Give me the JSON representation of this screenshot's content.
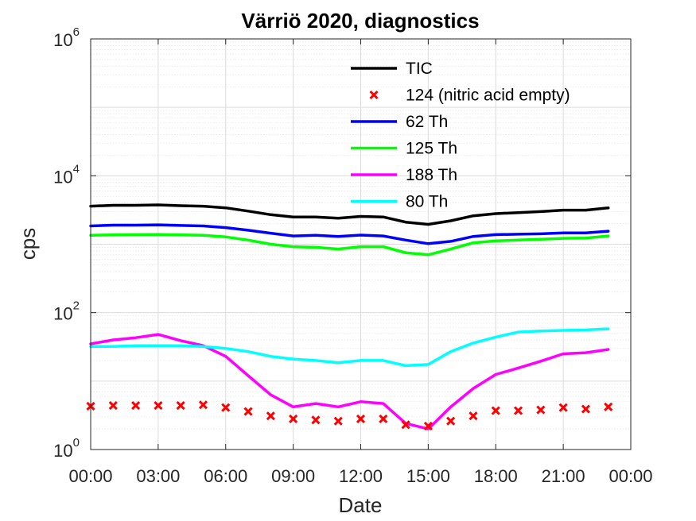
{
  "chart_data": {
    "type": "line",
    "title": "Värriö 2020, diagnostics",
    "xlabel": "Date",
    "ylabel": "cps",
    "yscale": "log",
    "ylim": [
      1,
      1000000
    ],
    "xlim": [
      "00:00",
      "24:00"
    ],
    "grid": true,
    "legend_position": "top-right",
    "x_tick_labels": [
      "00:00",
      "03:00",
      "06:00",
      "09:00",
      "12:00",
      "15:00",
      "18:00",
      "21:00",
      "00:00"
    ],
    "y_tick_labels": [
      {
        "base": "10",
        "exp": "0"
      },
      {
        "base": "10",
        "exp": "2"
      },
      {
        "base": "10",
        "exp": "4"
      },
      {
        "base": "10",
        "exp": "6"
      }
    ],
    "x": [
      "00:00",
      "01:00",
      "02:00",
      "03:00",
      "04:00",
      "05:00",
      "06:00",
      "07:00",
      "08:00",
      "09:00",
      "10:00",
      "11:00",
      "12:00",
      "13:00",
      "14:00",
      "15:00",
      "16:00",
      "17:00",
      "18:00",
      "19:00",
      "20:00",
      "21:00",
      "22:00",
      "23:00"
    ],
    "series": [
      {
        "name": "TIC",
        "style": "line",
        "color": "#000000",
        "values": [
          3600,
          3700,
          3700,
          3750,
          3650,
          3600,
          3400,
          3050,
          2700,
          2500,
          2500,
          2400,
          2550,
          2500,
          2100,
          1950,
          2200,
          2600,
          2800,
          2900,
          3000,
          3150,
          3150,
          3400
        ]
      },
      {
        "name": "124 (nitric acid empty)",
        "style": "marker",
        "marker": "x",
        "color": "#ff0000",
        "values": [
          4.3,
          4.4,
          4.4,
          4.4,
          4.4,
          4.5,
          4.1,
          3.6,
          3.1,
          2.8,
          2.7,
          2.6,
          2.8,
          2.8,
          2.3,
          2.2,
          2.6,
          3.1,
          3.7,
          3.7,
          3.8,
          4.1,
          3.9,
          4.2
        ]
      },
      {
        "name": "62 Th",
        "style": "line",
        "color": "#0000ff",
        "values": [
          1850,
          1900,
          1900,
          1920,
          1880,
          1850,
          1750,
          1600,
          1450,
          1320,
          1350,
          1300,
          1360,
          1320,
          1150,
          1020,
          1100,
          1300,
          1380,
          1400,
          1420,
          1460,
          1460,
          1550
        ]
      },
      {
        "name": "125 Th",
        "style": "line",
        "color": "#00ff00",
        "values": [
          1350,
          1370,
          1380,
          1390,
          1370,
          1350,
          1280,
          1150,
          1000,
          920,
          900,
          850,
          920,
          920,
          750,
          700,
          850,
          1050,
          1120,
          1150,
          1180,
          1220,
          1230,
          1320
        ]
      },
      {
        "name": "188 Th",
        "style": "line",
        "color": "#ff00ff",
        "values": [
          35,
          40,
          43,
          48,
          39,
          33,
          23,
          12,
          6.3,
          4.2,
          4.7,
          4.2,
          5.0,
          4.7,
          2.4,
          2.0,
          4.2,
          7.8,
          12.5,
          15.5,
          19.5,
          25,
          26,
          29
        ]
      },
      {
        "name": "80 Th",
        "style": "line",
        "color": "#00ffff",
        "values": [
          32,
          32,
          33,
          33,
          33,
          32,
          30,
          27,
          23,
          21,
          20,
          18.5,
          20,
          20,
          16.8,
          17.5,
          27,
          36,
          44,
          52,
          54,
          55,
          56,
          58
        ]
      }
    ]
  }
}
